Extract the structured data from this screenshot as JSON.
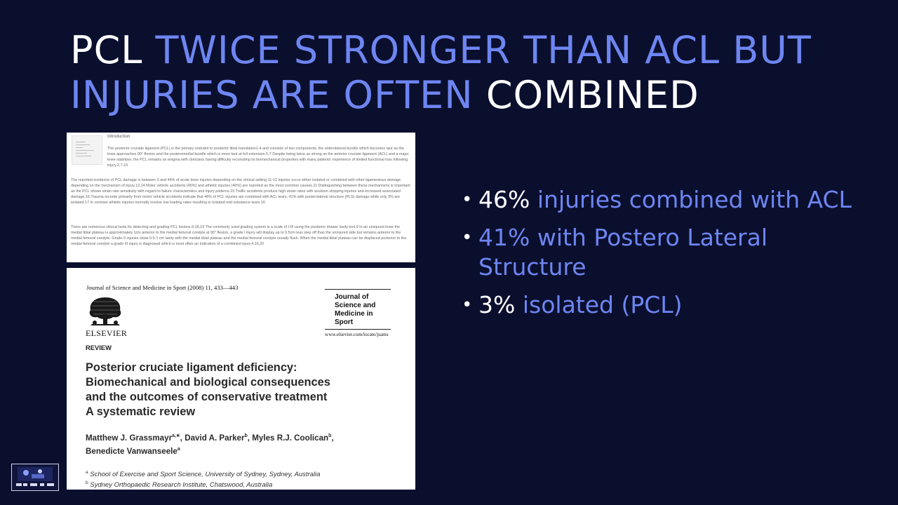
{
  "slide": {
    "title_line1_white": "PCL",
    "title_line1_blue": "TWICE STRONGER THAN ACL BUT",
    "title_line2_blue": "INJURIES ARE OFTEN",
    "title_line2_white": "COMBINED"
  },
  "excerpt": {
    "heading": "Introduction",
    "p1": "The posterior cruciate ligament (PCL) is the primary restraint to posterior tibial translation1-4 and consists of two components, the anterolateral bundle which becomes taut as the knee approaches 90° flexion and the posteromedial bundle which is more taut at full extension.5-7 Despite being twice as strong as the anterior cruciate ligament (ACL) and a major knee stabilizer, the PCL remains an enigma with clinicians having difficulty reconciling its biomechanical properties with many patients' experience of limited functional loss following injury.2,7-10",
    "p2": "The reported incidence of PCL damage is between 3 and 44% of acute knee injuries depending on the clinical setting.11-13 Injuries occur either isolated or combined with other ligamentous damage depending on the mechanism of injury.12,14 Motor vehicle accidents (45%) and athletic injuries (40%) are reported as the most common causes.11 Distinguishing between these mechanisms is important as the PCL shows strain rate sensitivity with regard to failure characteristics and injury patterns.15 Traffic accidents produce high strain rates with avulsion stripping injuries and increased associated damage.16 Trauma records primarily from motor vehicle accidents indicate that 46% of PCL injuries are combined with ACL tears, 41% with posterolateral structure (PLS) damage while only 3% are isolated.17 In contrast athletic injuries normally involve low loading rates resulting in isolated mid substance tears.16",
    "p3": "There are numerous clinical tests for detecting and grading PCL lesions.9,18,19 The commonly used grading system is a scale of I-III using the posterior drawer laxity test.9 In an uninjured knee the medial tibial plateau is approximately 1cm anterior to the medial femoral condyle at 90° flexion, a grade I injury will display up to 0.5cm less step off than the uninjured side but remains anterior to the medial femoral condyle. Grade II injuries show 0.5-1 cm laxity with the medial tibial plateau and the medial femoral condyle usually flush. When the medial tibial plateau can be displaced posterior to the medial femoral condyle a grade III injury is diagnosed which is most often an indication of a combined injury.4,16,20"
  },
  "article": {
    "journal_line": "Journal of Science and Medicine in Sport (2008) 11, 433—443",
    "publisher": "ELSEVIER",
    "journal_name": [
      "Journal of",
      "Science and",
      "Medicine in",
      "Sport"
    ],
    "url": "www.elsevier.com/locate/jsams",
    "type": "REVIEW",
    "title_lines": [
      "Posterior cruciate ligament deficiency:",
      "Biomechanical and biological consequences",
      "and the outcomes of conservative treatment",
      "A systematic review"
    ],
    "authors": [
      {
        "name": "Matthew J. Grassmayr",
        "sup": "a,∗"
      },
      {
        "name": "David A. Parker",
        "sup": "b"
      },
      {
        "name": "Myles R.J. Coolican",
        "sup": "b"
      },
      {
        "name": "Benedicte Vanwanseele",
        "sup": "a"
      }
    ],
    "affiliations": [
      {
        "sup": "a",
        "text": "School of Exercise and Sport Science, University of Sydney, Sydney, Australia"
      },
      {
        "sup": "b",
        "text": "Sydney Orthopaedic Research Institute, Chatswood, Australia"
      }
    ]
  },
  "bullets": [
    {
      "white": "46%",
      "blue": "injuries combined with ACL"
    },
    {
      "white": "",
      "blue": "41% with Postero Lateral Structure"
    },
    {
      "white": "3%",
      "blue": "isolated (PCL)"
    }
  ],
  "colors": {
    "background": "#0b0f2e",
    "accent_blue": "#6e86f2",
    "white": "#ffffff"
  }
}
